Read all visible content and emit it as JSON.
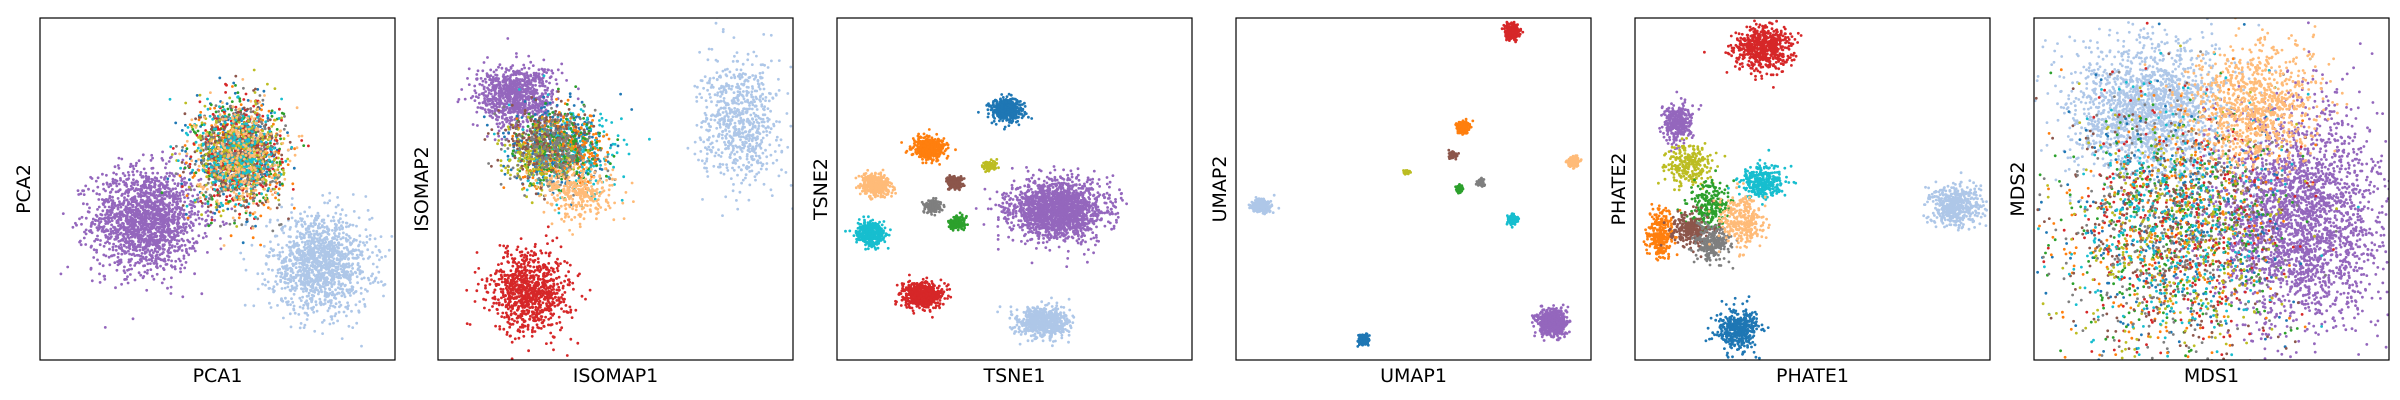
{
  "chart_data": [
    {
      "type": "scatter",
      "title": "",
      "xlabel": "PCA1",
      "ylabel": "PCA2",
      "xlim": [
        0,
        10
      ],
      "ylim": [
        0,
        10
      ],
      "grid": false,
      "ticks": false,
      "series": [
        {
          "color": "#9467bd",
          "cx": 3.0,
          "cy": 4.1,
          "sx": 0.75,
          "sy": 0.75,
          "n": 1700
        },
        {
          "color": "#aec7e8",
          "cx": 7.9,
          "cy": 2.8,
          "sx": 0.7,
          "sy": 0.7,
          "n": 1300
        },
        {
          "color": "#1f77b4",
          "cx": 5.6,
          "cy": 6.0,
          "sx": 0.6,
          "sy": 0.75,
          "n": 260
        },
        {
          "color": "#ff7f0e",
          "cx": 5.6,
          "cy": 6.0,
          "sx": 0.6,
          "sy": 0.75,
          "n": 260
        },
        {
          "color": "#2ca02c",
          "cx": 5.6,
          "cy": 6.0,
          "sx": 0.6,
          "sy": 0.75,
          "n": 260
        },
        {
          "color": "#d62728",
          "cx": 5.6,
          "cy": 6.0,
          "sx": 0.6,
          "sy": 0.75,
          "n": 260
        },
        {
          "color": "#8c564b",
          "cx": 5.6,
          "cy": 6.0,
          "sx": 0.6,
          "sy": 0.75,
          "n": 260
        },
        {
          "color": "#7f7f7f",
          "cx": 5.6,
          "cy": 6.0,
          "sx": 0.6,
          "sy": 0.75,
          "n": 260
        },
        {
          "color": "#bcbd22",
          "cx": 5.6,
          "cy": 6.0,
          "sx": 0.6,
          "sy": 0.75,
          "n": 260
        },
        {
          "color": "#17becf",
          "cx": 5.6,
          "cy": 6.0,
          "sx": 0.6,
          "sy": 0.75,
          "n": 260
        },
        {
          "color": "#ffbb78",
          "cx": 5.6,
          "cy": 6.0,
          "sx": 0.6,
          "sy": 0.75,
          "n": 260
        }
      ]
    },
    {
      "type": "scatter",
      "title": "",
      "xlabel": "ISOMAP1",
      "ylabel": "ISOMAP2",
      "xlim": [
        0,
        10
      ],
      "ylim": [
        0,
        10
      ],
      "grid": false,
      "ticks": false,
      "series": [
        {
          "color": "#9467bd",
          "cx": 2.2,
          "cy": 7.7,
          "sx": 0.55,
          "sy": 0.45,
          "n": 900
        },
        {
          "color": "#aec7e8",
          "cx": 8.5,
          "cy": 7.0,
          "sx": 0.55,
          "sy": 0.9,
          "n": 700
        },
        {
          "color": "#d62728",
          "cx": 2.6,
          "cy": 2.0,
          "sx": 0.55,
          "sy": 0.6,
          "n": 900
        },
        {
          "color": "#1f77b4",
          "cx": 3.2,
          "cy": 6.3,
          "sx": 0.7,
          "sy": 0.6,
          "n": 300
        },
        {
          "color": "#17becf",
          "cx": 3.8,
          "cy": 6.0,
          "sx": 0.7,
          "sy": 0.6,
          "n": 300
        },
        {
          "color": "#ff7f0e",
          "cx": 3.6,
          "cy": 6.1,
          "sx": 0.6,
          "sy": 0.55,
          "n": 250
        },
        {
          "color": "#2ca02c",
          "cx": 3.4,
          "cy": 6.2,
          "sx": 0.6,
          "sy": 0.55,
          "n": 200
        },
        {
          "color": "#bcbd22",
          "cx": 2.8,
          "cy": 6.0,
          "sx": 0.5,
          "sy": 0.5,
          "n": 200
        },
        {
          "color": "#8c564b",
          "cx": 3.0,
          "cy": 6.4,
          "sx": 0.6,
          "sy": 0.55,
          "n": 200
        },
        {
          "color": "#7f7f7f",
          "cx": 3.3,
          "cy": 6.1,
          "sx": 0.6,
          "sy": 0.55,
          "n": 200
        },
        {
          "color": "#ffbb78",
          "cx": 4.0,
          "cy": 4.9,
          "sx": 0.5,
          "sy": 0.4,
          "n": 300
        }
      ]
    },
    {
      "type": "scatter",
      "title": "",
      "xlabel": "TSNE1",
      "ylabel": "TSNE2",
      "xlim": [
        0,
        10
      ],
      "ylim": [
        0,
        10
      ],
      "grid": false,
      "ticks": false,
      "series": [
        {
          "color": "#9467bd",
          "cx": 6.2,
          "cy": 4.4,
          "sx": 0.65,
          "sy": 0.42,
          "n": 1800
        },
        {
          "color": "#aec7e8",
          "cx": 5.8,
          "cy": 1.1,
          "sx": 0.35,
          "sy": 0.22,
          "n": 700
        },
        {
          "color": "#1f77b4",
          "cx": 4.8,
          "cy": 7.3,
          "sx": 0.22,
          "sy": 0.16,
          "n": 500
        },
        {
          "color": "#ff7f0e",
          "cx": 2.6,
          "cy": 6.2,
          "sx": 0.22,
          "sy": 0.16,
          "n": 500
        },
        {
          "color": "#ffbb78",
          "cx": 1.1,
          "cy": 5.1,
          "sx": 0.2,
          "sy": 0.16,
          "n": 400
        },
        {
          "color": "#17becf",
          "cx": 0.95,
          "cy": 3.7,
          "sx": 0.2,
          "sy": 0.16,
          "n": 400
        },
        {
          "color": "#d62728",
          "cx": 2.4,
          "cy": 1.9,
          "sx": 0.28,
          "sy": 0.18,
          "n": 600
        },
        {
          "color": "#7f7f7f",
          "cx": 2.7,
          "cy": 4.5,
          "sx": 0.12,
          "sy": 0.1,
          "n": 150
        },
        {
          "color": "#8c564b",
          "cx": 3.3,
          "cy": 5.2,
          "sx": 0.12,
          "sy": 0.1,
          "n": 150
        },
        {
          "color": "#2ca02c",
          "cx": 3.4,
          "cy": 4.0,
          "sx": 0.12,
          "sy": 0.1,
          "n": 150
        },
        {
          "color": "#bcbd22",
          "cx": 4.3,
          "cy": 5.7,
          "sx": 0.1,
          "sy": 0.08,
          "n": 80
        }
      ]
    },
    {
      "type": "scatter",
      "title": "",
      "xlabel": "UMAP1",
      "ylabel": "UMAP2",
      "xlim": [
        0,
        10
      ],
      "ylim": [
        0,
        10
      ],
      "grid": false,
      "ticks": false,
      "series": [
        {
          "color": "#d62728",
          "cx": 7.8,
          "cy": 9.6,
          "sx": 0.1,
          "sy": 0.1,
          "n": 300
        },
        {
          "color": "#ff7f0e",
          "cx": 6.4,
          "cy": 6.8,
          "sx": 0.08,
          "sy": 0.08,
          "n": 200
        },
        {
          "color": "#8c564b",
          "cx": 6.1,
          "cy": 6.0,
          "sx": 0.05,
          "sy": 0.05,
          "n": 80
        },
        {
          "color": "#ffbb78",
          "cx": 9.5,
          "cy": 5.8,
          "sx": 0.08,
          "sy": 0.07,
          "n": 200
        },
        {
          "color": "#bcbd22",
          "cx": 4.8,
          "cy": 5.5,
          "sx": 0.05,
          "sy": 0.03,
          "n": 40
        },
        {
          "color": "#2ca02c",
          "cx": 6.3,
          "cy": 5.0,
          "sx": 0.05,
          "sy": 0.05,
          "n": 80
        },
        {
          "color": "#7f7f7f",
          "cx": 6.9,
          "cy": 5.2,
          "sx": 0.05,
          "sy": 0.05,
          "n": 80
        },
        {
          "color": "#aec7e8",
          "cx": 0.7,
          "cy": 4.5,
          "sx": 0.12,
          "sy": 0.1,
          "n": 300
        },
        {
          "color": "#17becf",
          "cx": 7.8,
          "cy": 4.1,
          "sx": 0.07,
          "sy": 0.07,
          "n": 150
        },
        {
          "color": "#9467bd",
          "cx": 8.9,
          "cy": 1.1,
          "sx": 0.18,
          "sy": 0.18,
          "n": 800
        },
        {
          "color": "#1f77b4",
          "cx": 3.6,
          "cy": 0.6,
          "sx": 0.08,
          "sy": 0.08,
          "n": 150
        }
      ]
    },
    {
      "type": "scatter",
      "title": "",
      "xlabel": "PHATE1",
      "ylabel": "PHATE2",
      "xlim": [
        0,
        10
      ],
      "ylim": [
        0,
        10
      ],
      "grid": false,
      "ticks": false,
      "series": [
        {
          "color": "#d62728",
          "cx": 3.6,
          "cy": 9.1,
          "sx": 0.4,
          "sy": 0.32,
          "n": 600
        },
        {
          "color": "#9467bd",
          "cx": 1.2,
          "cy": 6.9,
          "sx": 0.2,
          "sy": 0.3,
          "n": 300
        },
        {
          "color": "#aec7e8",
          "cx": 9.0,
          "cy": 4.5,
          "sx": 0.35,
          "sy": 0.3,
          "n": 500
        },
        {
          "color": "#17becf",
          "cx": 3.6,
          "cy": 5.2,
          "sx": 0.3,
          "sy": 0.25,
          "n": 300
        },
        {
          "color": "#1f77b4",
          "cx": 2.9,
          "cy": 0.9,
          "sx": 0.3,
          "sy": 0.3,
          "n": 400
        },
        {
          "color": "#bcbd22",
          "cx": 1.5,
          "cy": 5.7,
          "sx": 0.28,
          "sy": 0.3,
          "n": 250
        },
        {
          "color": "#2ca02c",
          "cx": 2.1,
          "cy": 4.5,
          "sx": 0.3,
          "sy": 0.35,
          "n": 250
        },
        {
          "color": "#ff7f0e",
          "cx": 0.7,
          "cy": 3.7,
          "sx": 0.2,
          "sy": 0.35,
          "n": 250
        },
        {
          "color": "#8c564b",
          "cx": 1.6,
          "cy": 3.8,
          "sx": 0.3,
          "sy": 0.25,
          "n": 250
        },
        {
          "color": "#7f7f7f",
          "cx": 2.2,
          "cy": 3.4,
          "sx": 0.25,
          "sy": 0.25,
          "n": 250
        },
        {
          "color": "#ffbb78",
          "cx": 3.0,
          "cy": 4.1,
          "sx": 0.3,
          "sy": 0.35,
          "n": 300
        }
      ]
    },
    {
      "type": "scatter",
      "title": "",
      "xlabel": "MDS1",
      "ylabel": "MDS2",
      "xlim": [
        0,
        10
      ],
      "ylim": [
        0,
        10
      ],
      "grid": false,
      "ticks": false,
      "series": [
        {
          "color": "#aec7e8",
          "cx": 3.2,
          "cy": 7.3,
          "sx": 1.1,
          "sy": 1.0,
          "n": 1800
        },
        {
          "color": "#9467bd",
          "cx": 7.5,
          "cy": 4.1,
          "sx": 1.2,
          "sy": 1.6,
          "n": 2600
        },
        {
          "color": "#1f77b4",
          "cx": 4.0,
          "cy": 3.8,
          "sx": 1.6,
          "sy": 1.9,
          "n": 330
        },
        {
          "color": "#ff7f0e",
          "cx": 4.0,
          "cy": 3.8,
          "sx": 1.6,
          "sy": 1.9,
          "n": 330
        },
        {
          "color": "#2ca02c",
          "cx": 4.0,
          "cy": 3.8,
          "sx": 1.6,
          "sy": 1.9,
          "n": 330
        },
        {
          "color": "#d62728",
          "cx": 4.0,
          "cy": 3.8,
          "sx": 1.6,
          "sy": 1.9,
          "n": 330
        },
        {
          "color": "#8c564b",
          "cx": 4.0,
          "cy": 3.8,
          "sx": 1.6,
          "sy": 1.9,
          "n": 330
        },
        {
          "color": "#7f7f7f",
          "cx": 4.0,
          "cy": 3.8,
          "sx": 1.6,
          "sy": 1.9,
          "n": 330
        },
        {
          "color": "#bcbd22",
          "cx": 4.0,
          "cy": 3.8,
          "sx": 1.6,
          "sy": 1.9,
          "n": 330
        },
        {
          "color": "#17becf",
          "cx": 4.0,
          "cy": 3.8,
          "sx": 1.6,
          "sy": 1.9,
          "n": 330
        },
        {
          "color": "#ffbb78",
          "cx": 6.2,
          "cy": 7.4,
          "sx": 0.9,
          "sy": 0.9,
          "n": 900
        }
      ]
    }
  ]
}
